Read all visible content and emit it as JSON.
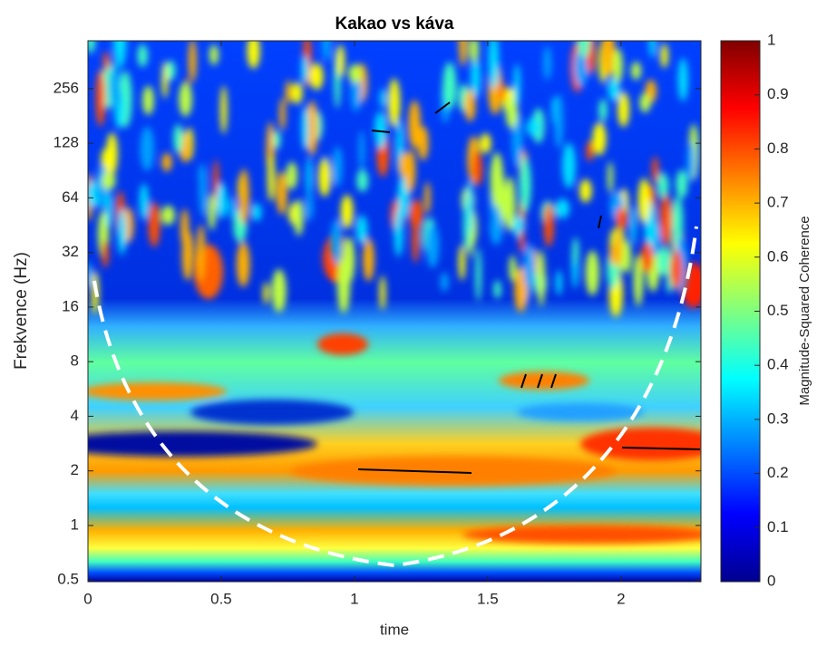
{
  "chart_data": {
    "type": "heatmap",
    "title": "Kakao vs káva",
    "x_label": "time",
    "y_label": "Frekvence (Hz)",
    "xlim": [
      0,
      2.3
    ],
    "xticks": [
      0,
      0.5,
      1,
      1.5,
      2
    ],
    "ylim": [
      0.49,
      470
    ],
    "yscale": "log",
    "yticks": [
      0.5,
      1,
      2,
      4,
      8,
      16,
      32,
      64,
      128,
      256
    ],
    "colormap": "jet",
    "colorbar": {
      "label": "Magnitude-Squared Coherence",
      "lim": [
        0,
        1
      ],
      "ticks": [
        0,
        0.1,
        0.2,
        0.3,
        0.4,
        0.5,
        0.6,
        0.7,
        0.8,
        0.9,
        1
      ]
    }
  }
}
